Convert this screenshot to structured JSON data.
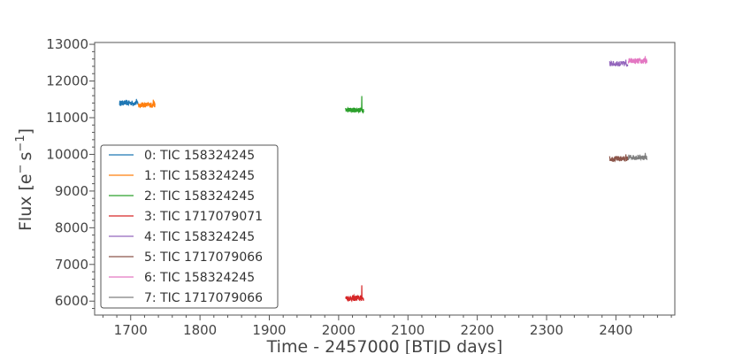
{
  "chart_data": {
    "type": "scatter",
    "xlabel": "Time - 2457000 [BTJD days]",
    "ylabel_base": "Flux [e",
    "ylabel_sup1": "−",
    "ylabel_mid": "s",
    "ylabel_sup2": "−1",
    "ylabel_end": "]",
    "xlim": [
      1648,
      2485
    ],
    "ylim": [
      5620,
      13050
    ],
    "xticks": [
      1700,
      1800,
      1900,
      2000,
      2100,
      2200,
      2300,
      2400
    ],
    "yticks": [
      6000,
      7000,
      8000,
      9000,
      10000,
      11000,
      12000,
      13000
    ],
    "xtick_labels": [
      "1700",
      "1800",
      "1900",
      "2000",
      "2100",
      "2200",
      "2300",
      "2400"
    ],
    "ytick_labels": [
      "6000",
      "7000",
      "8000",
      "9000",
      "10000",
      "11000",
      "12000",
      "13000"
    ],
    "legend_position": "lower-left",
    "series": [
      {
        "name": "0: TIC 158324245",
        "color": "#1f77b4",
        "x_range": [
          1684,
          1711
        ],
        "flux": 11400,
        "spread": 70,
        "spike": 11510
      },
      {
        "name": "1: TIC 158324245",
        "color": "#ff7f0e",
        "x_range": [
          1711,
          1735
        ],
        "flux": 11350,
        "spread": 70,
        "spike": 11490
      },
      {
        "name": "2: TIC 158324245",
        "color": "#2ca02c",
        "x_range": [
          2010,
          2036
        ],
        "flux": 11210,
        "spread": 70,
        "spike": 11590
      },
      {
        "name": "3: TIC 1717079071",
        "color": "#d62728",
        "x_range": [
          2010,
          2036
        ],
        "flux": 6080,
        "spread": 80,
        "spike": 6430
      },
      {
        "name": "4: TIC 158324245",
        "color": "#9467bd",
        "x_range": [
          2391,
          2417
        ],
        "flux": 12470,
        "spread": 75,
        "spike": 12580
      },
      {
        "name": "5: TIC 1717079066",
        "color": "#8c564b",
        "x_range": [
          2391,
          2417
        ],
        "flux": 9880,
        "spread": 75,
        "spike": 10000
      },
      {
        "name": "6: TIC 158324245",
        "color": "#e377c2",
        "x_range": [
          2418,
          2445
        ],
        "flux": 12540,
        "spread": 75,
        "spike": 12680
      },
      {
        "name": "7: TIC 1717079066",
        "color": "#7f7f7f",
        "x_range": [
          2418,
          2445
        ],
        "flux": 9920,
        "spread": 75,
        "spike": 10040
      }
    ]
  }
}
